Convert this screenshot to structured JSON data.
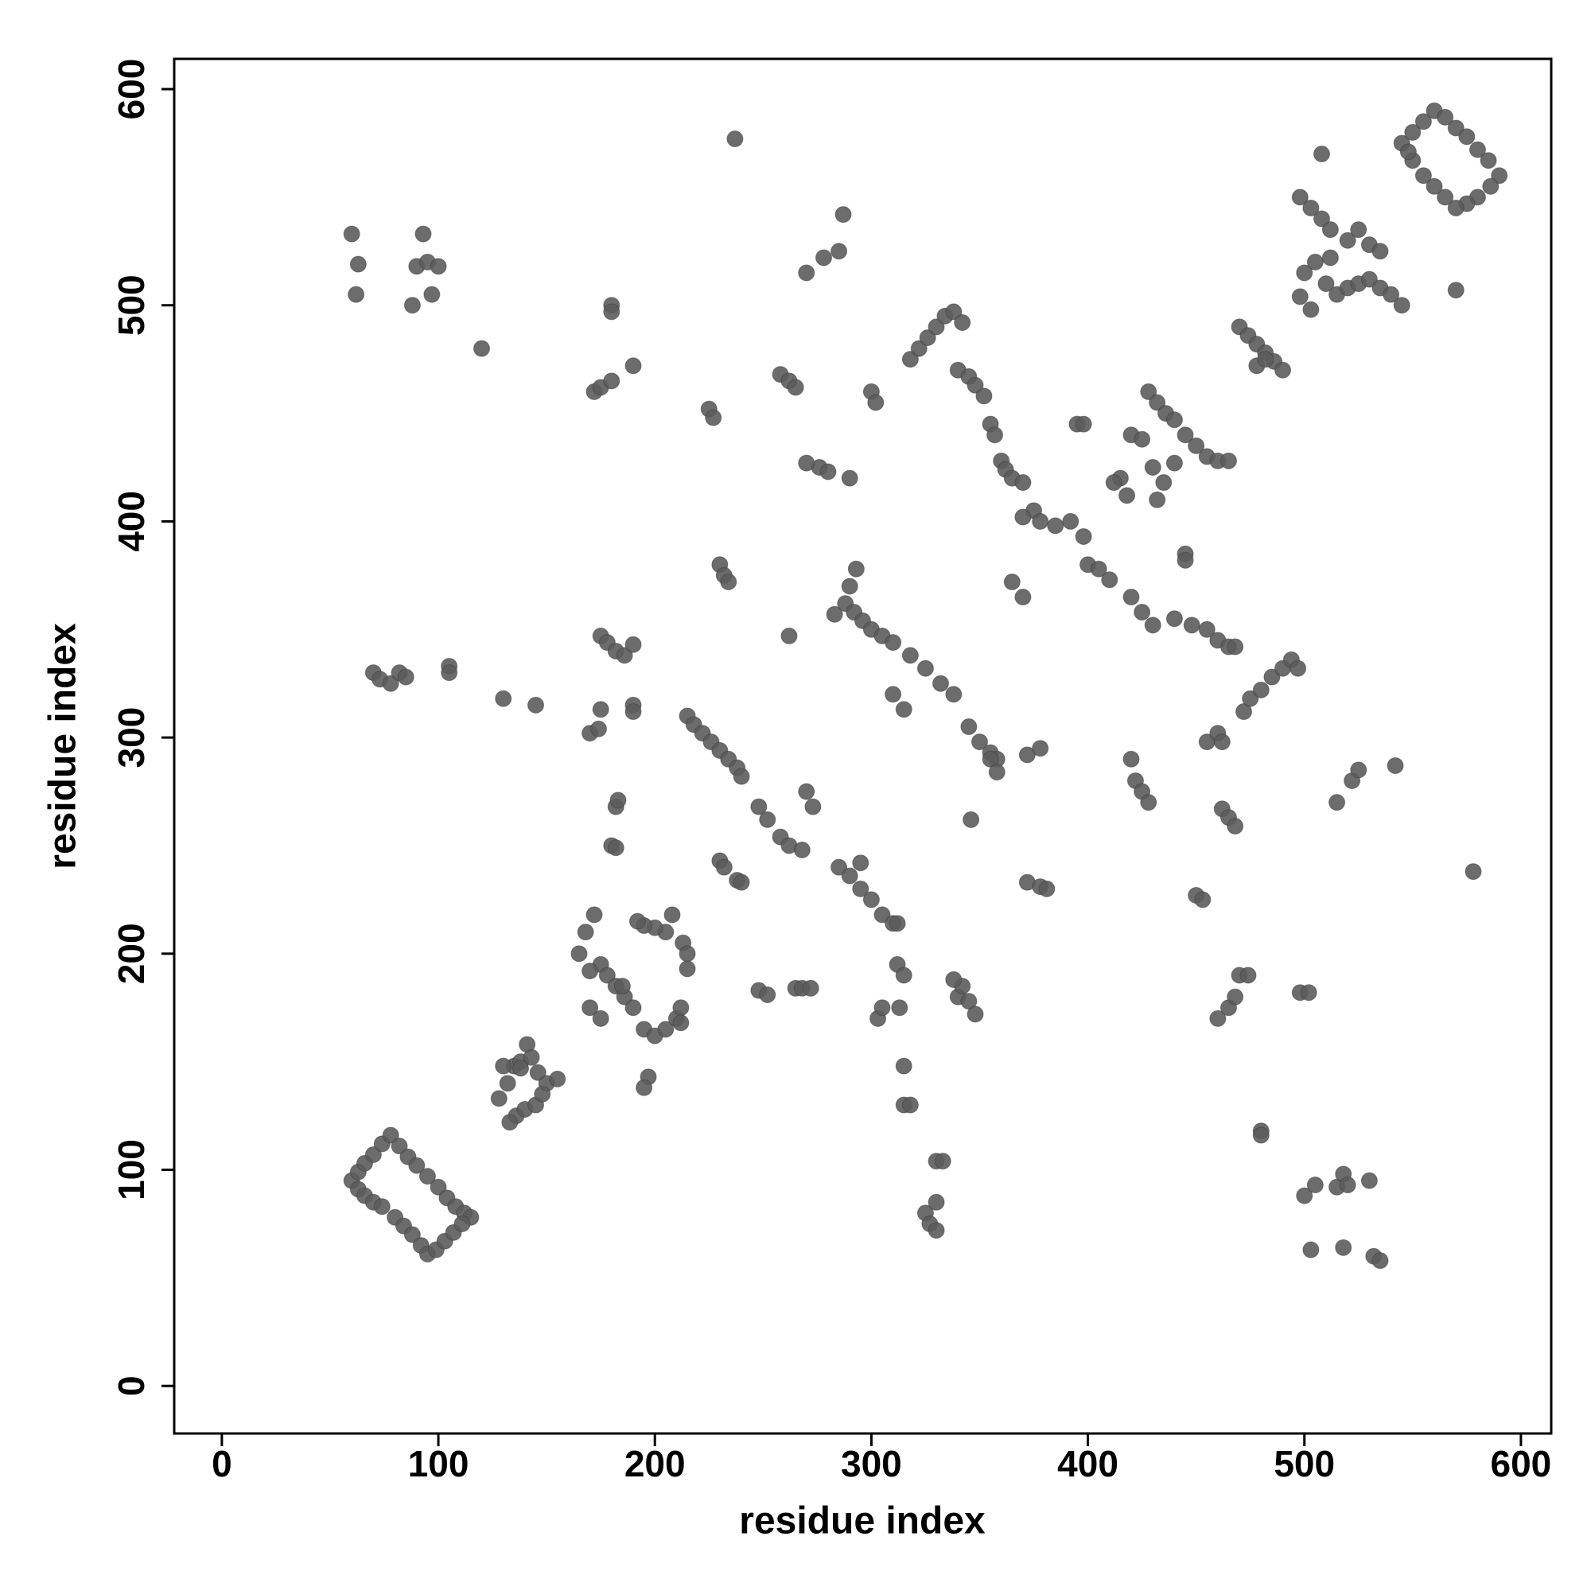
{
  "chart_data": {
    "type": "scatter",
    "xlabel": "residue index",
    "ylabel": "residue index",
    "xlim": [
      -22,
      614
    ],
    "ylim": [
      -22,
      614
    ],
    "xticks": [
      0,
      100,
      200,
      300,
      400,
      500,
      600
    ],
    "yticks": [
      0,
      100,
      200,
      300,
      400,
      500,
      600
    ],
    "color": "#5c5c5c",
    "x": [
      60,
      63,
      66,
      70,
      74,
      78,
      82,
      86,
      90,
      95,
      100,
      104,
      108,
      112,
      115,
      63,
      66,
      70,
      74,
      80,
      84,
      88,
      92,
      95,
      99,
      103,
      107,
      111,
      128,
      132,
      135,
      138,
      141,
      143,
      146,
      150,
      155,
      136,
      140,
      145,
      148,
      133,
      138,
      130,
      165,
      168,
      172,
      175,
      178,
      182,
      186,
      190,
      195,
      200,
      205,
      210,
      212,
      205,
      200,
      195,
      208,
      213,
      215,
      215,
      192,
      197,
      195,
      170,
      175,
      185,
      212,
      170,
      215,
      218,
      222,
      226,
      230,
      234,
      238,
      240,
      248,
      252,
      258,
      262,
      268,
      285,
      290,
      295,
      300,
      305,
      310,
      312,
      295,
      288,
      292,
      296,
      300,
      305,
      310,
      318,
      325,
      332,
      338,
      345,
      350,
      355,
      358,
      293,
      290,
      283,
      372,
      378,
      318,
      322,
      326,
      330,
      334,
      338,
      342,
      340,
      345,
      348,
      352,
      355,
      357,
      360,
      362,
      365,
      370,
      300,
      302,
      375,
      378,
      385,
      392,
      398,
      400,
      405,
      410,
      420,
      425,
      430,
      440,
      448,
      455,
      460,
      465,
      468,
      370,
      428,
      432,
      436,
      440,
      445,
      450,
      455,
      460,
      465,
      415,
      418,
      412,
      420,
      425,
      430,
      432,
      445,
      445,
      470,
      474,
      478,
      482,
      486,
      490,
      395,
      398,
      545,
      550,
      555,
      560,
      565,
      570,
      575,
      580,
      585,
      590,
      586,
      580,
      575,
      570,
      565,
      560,
      555,
      550,
      548,
      498,
      503,
      508,
      512,
      505,
      500,
      510,
      515,
      520,
      525,
      530,
      535,
      540,
      545,
      520,
      525,
      530,
      535,
      512,
      508,
      570,
      503,
      498,
      237,
      60,
      63,
      62,
      88,
      90,
      95,
      93,
      97,
      100,
      120,
      180,
      180,
      190,
      172,
      175,
      180,
      225,
      227,
      258,
      262,
      265,
      270,
      278,
      285,
      287,
      276,
      270,
      280,
      290,
      230,
      232,
      234,
      262,
      175,
      178,
      182,
      186,
      190,
      70,
      73,
      78,
      82,
      85,
      105,
      105,
      130,
      145,
      175,
      190,
      170,
      174,
      190,
      182,
      183,
      180,
      182,
      230,
      232,
      238,
      240,
      248,
      252,
      265,
      268,
      272,
      270,
      273,
      303,
      305,
      313,
      312,
      315,
      315,
      315,
      318,
      330,
      333,
      325,
      327,
      330,
      330,
      340,
      342,
      345,
      348,
      338,
      355,
      358,
      310,
      315,
      346,
      365,
      370,
      372,
      378,
      381,
      420,
      422,
      425,
      428,
      450,
      453,
      455,
      460,
      462,
      462,
      465,
      468,
      460,
      465,
      468,
      470,
      474,
      472,
      475,
      480,
      485,
      490,
      494,
      497,
      480,
      480,
      498,
      502,
      500,
      505,
      503,
      515,
      518,
      520,
      518,
      530,
      532,
      535,
      515,
      522,
      525,
      542,
      578,
      478,
      482,
      435,
      440
    ],
    "values": [
      95,
      99,
      103,
      107,
      112,
      116,
      111,
      106,
      102,
      97,
      92,
      87,
      83,
      80,
      78,
      91,
      88,
      85,
      83,
      78,
      74,
      70,
      65,
      61,
      63,
      67,
      71,
      75,
      133,
      140,
      148,
      150,
      158,
      152,
      145,
      140,
      142,
      125,
      128,
      130,
      135,
      122,
      147,
      148,
      200,
      210,
      218,
      195,
      190,
      185,
      180,
      175,
      165,
      162,
      165,
      170,
      175,
      210,
      212,
      213,
      218,
      205,
      200,
      193,
      215,
      143,
      138,
      175,
      170,
      185,
      168,
      192,
      310,
      306,
      302,
      298,
      294,
      290,
      286,
      282,
      268,
      262,
      254,
      250,
      248,
      240,
      236,
      230,
      225,
      218,
      214,
      214,
      242,
      362,
      358,
      354,
      350,
      347,
      344,
      338,
      332,
      325,
      320,
      305,
      298,
      293,
      290,
      378,
      370,
      357,
      292,
      295,
      475,
      480,
      485,
      490,
      495,
      497,
      492,
      470,
      467,
      463,
      458,
      445,
      440,
      428,
      424,
      420,
      418,
      460,
      455,
      405,
      400,
      398,
      400,
      393,
      380,
      378,
      373,
      365,
      358,
      352,
      355,
      352,
      350,
      345,
      342,
      342,
      402,
      460,
      455,
      450,
      447,
      440,
      435,
      430,
      428,
      428,
      420,
      412,
      418,
      440,
      438,
      425,
      410,
      385,
      382,
      490,
      486,
      482,
      478,
      474,
      470,
      445,
      445,
      575,
      580,
      585,
      590,
      587,
      582,
      578,
      572,
      567,
      560,
      555,
      550,
      547,
      545,
      550,
      555,
      560,
      567,
      571,
      550,
      545,
      540,
      535,
      520,
      515,
      510,
      505,
      508,
      510,
      512,
      508,
      505,
      500,
      530,
      535,
      528,
      525,
      522,
      570,
      507,
      498,
      504,
      577,
      533,
      519,
      505,
      500,
      518,
      520,
      533,
      505,
      518,
      480,
      500,
      497,
      472,
      460,
      462,
      465,
      452,
      448,
      468,
      465,
      462,
      515,
      522,
      525,
      542,
      425,
      427,
      423,
      420,
      380,
      375,
      372,
      347,
      347,
      344,
      340,
      338,
      343,
      330,
      327,
      325,
      330,
      328,
      333,
      330,
      318,
      315,
      313,
      315,
      302,
      304,
      312,
      268,
      271,
      250,
      249,
      243,
      240,
      234,
      233,
      183,
      181,
      184,
      184,
      184,
      275,
      268,
      170,
      175,
      175,
      195,
      190,
      148,
      130,
      130,
      104,
      104,
      80,
      75,
      72,
      85,
      180,
      185,
      178,
      172,
      188,
      290,
      284,
      320,
      313,
      262,
      372,
      365,
      233,
      231,
      230,
      290,
      280,
      275,
      270,
      227,
      225,
      298,
      302,
      298,
      267,
      263,
      259,
      170,
      175,
      180,
      190,
      190,
      312,
      318,
      322,
      328,
      332,
      336,
      332,
      118,
      116,
      182,
      182,
      88,
      93,
      63,
      92,
      98,
      93,
      64,
      95,
      60,
      58,
      270,
      280,
      285,
      287,
      238,
      472,
      475,
      418,
      427
    ]
  }
}
